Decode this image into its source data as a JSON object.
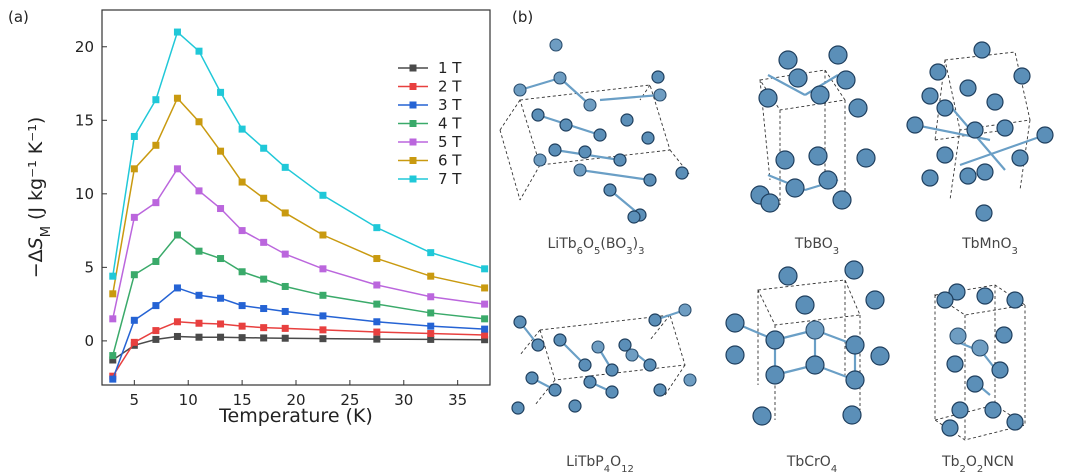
{
  "panel_a": {
    "label": "(a)"
  },
  "panel_b": {
    "label": "(b)"
  },
  "chart_data": {
    "type": "line",
    "title": "",
    "xlabel": "Temperature (K)",
    "ylabel_parts": {
      "prefix": "−Δ",
      "symbol": "S",
      "subscript": "M",
      "unit": " (J kg⁻¹ K⁻¹)"
    },
    "xlim": [
      2,
      38
    ],
    "ylim": [
      -3,
      22.5
    ],
    "xticks": [
      5,
      10,
      15,
      20,
      25,
      30,
      35
    ],
    "yticks": [
      0,
      5,
      10,
      15,
      20
    ],
    "grid": false,
    "legend_position": "top-right",
    "x": [
      3,
      5,
      7,
      9,
      11,
      13,
      15,
      17,
      19,
      22.5,
      27.5,
      32.5,
      37.5
    ],
    "series": [
      {
        "name": "1 T",
        "color": "#4a4a4a",
        "values": [
          -1.3,
          -0.3,
          0.1,
          0.3,
          0.25,
          0.25,
          0.22,
          0.2,
          0.18,
          0.15,
          0.12,
          0.1,
          0.08
        ]
      },
      {
        "name": "2 T",
        "color": "#e8403f",
        "values": [
          -2.4,
          -0.1,
          0.7,
          1.3,
          1.2,
          1.15,
          1.0,
          0.9,
          0.85,
          0.75,
          0.6,
          0.5,
          0.4
        ]
      },
      {
        "name": "3 T",
        "color": "#2563d4",
        "values": [
          -2.6,
          1.4,
          2.4,
          3.6,
          3.1,
          2.9,
          2.4,
          2.2,
          2.0,
          1.7,
          1.3,
          1.0,
          0.8
        ]
      },
      {
        "name": "4 T",
        "color": "#3aaa6a",
        "values": [
          -1.0,
          4.5,
          5.4,
          7.2,
          6.1,
          5.6,
          4.7,
          4.2,
          3.7,
          3.1,
          2.5,
          1.9,
          1.5
        ]
      },
      {
        "name": "5 T",
        "color": "#bb66dd",
        "values": [
          1.5,
          8.4,
          9.4,
          11.7,
          10.2,
          9.0,
          7.5,
          6.7,
          5.9,
          4.9,
          3.8,
          3.0,
          2.5
        ]
      },
      {
        "name": "6 T",
        "color": "#c99a10",
        "values": [
          3.2,
          11.7,
          13.3,
          16.5,
          14.9,
          12.9,
          10.8,
          9.7,
          8.7,
          7.2,
          5.6,
          4.4,
          3.6
        ]
      },
      {
        "name": "7 T",
        "color": "#20c8d8",
        "values": [
          4.4,
          13.9,
          16.4,
          21.0,
          19.7,
          16.9,
          14.4,
          13.1,
          11.8,
          9.9,
          7.7,
          6.0,
          4.9
        ]
      }
    ]
  },
  "crystals": [
    {
      "label_parts": [
        "LiTb",
        "6",
        "O",
        "5",
        "(BO",
        "3",
        ")",
        "3"
      ]
    },
    {
      "label_parts": [
        "TbBO",
        "3"
      ]
    },
    {
      "label_parts": [
        "TbMnO",
        "3"
      ]
    },
    {
      "label_parts": [
        "LiTbP",
        "4",
        "O",
        "12"
      ]
    },
    {
      "label_parts": [
        "TbCrO",
        "4"
      ]
    },
    {
      "label_parts": [
        "Tb",
        "2",
        "O",
        "2",
        "NCN"
      ]
    }
  ]
}
